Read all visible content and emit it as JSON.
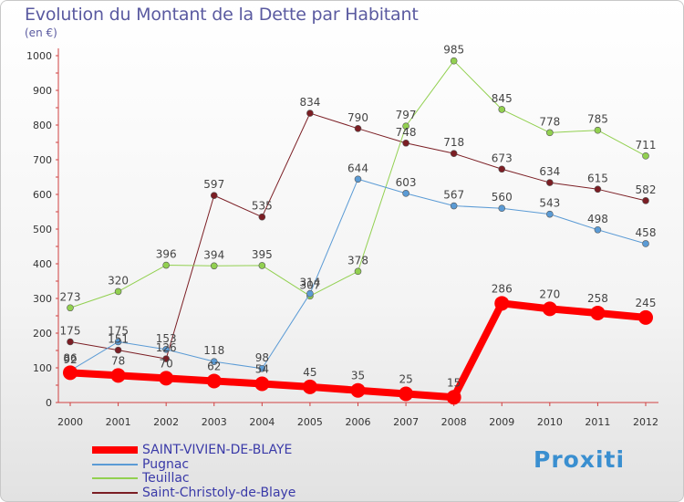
{
  "title": "Evolution du Montant de la Dette par Habitant",
  "unit_label": "(en €)",
  "brand": "Proxiti",
  "chart_data": {
    "type": "line",
    "title": "Evolution du Montant de la Dette par Habitant",
    "ylabel": "(en €)",
    "ylim": [
      0,
      1000
    ],
    "y_ticks": [
      0,
      100,
      200,
      300,
      400,
      500,
      600,
      700,
      800,
      900,
      1000
    ],
    "grid": false,
    "legend_placement": "bottom-left",
    "categories": [
      "2000",
      "2001",
      "2002",
      "2003",
      "2004",
      "2005",
      "2006",
      "2007",
      "2008",
      "2009",
      "2010",
      "2011",
      "2012"
    ],
    "series": [
      {
        "name": "SAINT-VIVIEN-DE-BLAYE",
        "color": "#ff0000",
        "width": 8,
        "marker": 8,
        "values": [
          86,
          78,
          70,
          62,
          54,
          45,
          35,
          25,
          15,
          286,
          270,
          258,
          245
        ]
      },
      {
        "name": "Pugnac",
        "color": "#5b9bd5",
        "width": 1,
        "marker": 3.5,
        "values": [
          92,
          175,
          153,
          118,
          98,
          314,
          644,
          603,
          567,
          560,
          543,
          498,
          458
        ]
      },
      {
        "name": "Teuillac",
        "color": "#92d050",
        "width": 1,
        "marker": 3.5,
        "values": [
          273,
          320,
          396,
          394,
          395,
          307,
          378,
          797,
          985,
          845,
          778,
          785,
          711
        ]
      },
      {
        "name": "Saint-Christoly-de-Blaye",
        "color": "#7b1e24",
        "width": 1,
        "marker": 3.5,
        "values": [
          175,
          151,
          126,
          597,
          535,
          834,
          790,
          748,
          718,
          673,
          634,
          615,
          582
        ]
      }
    ]
  }
}
